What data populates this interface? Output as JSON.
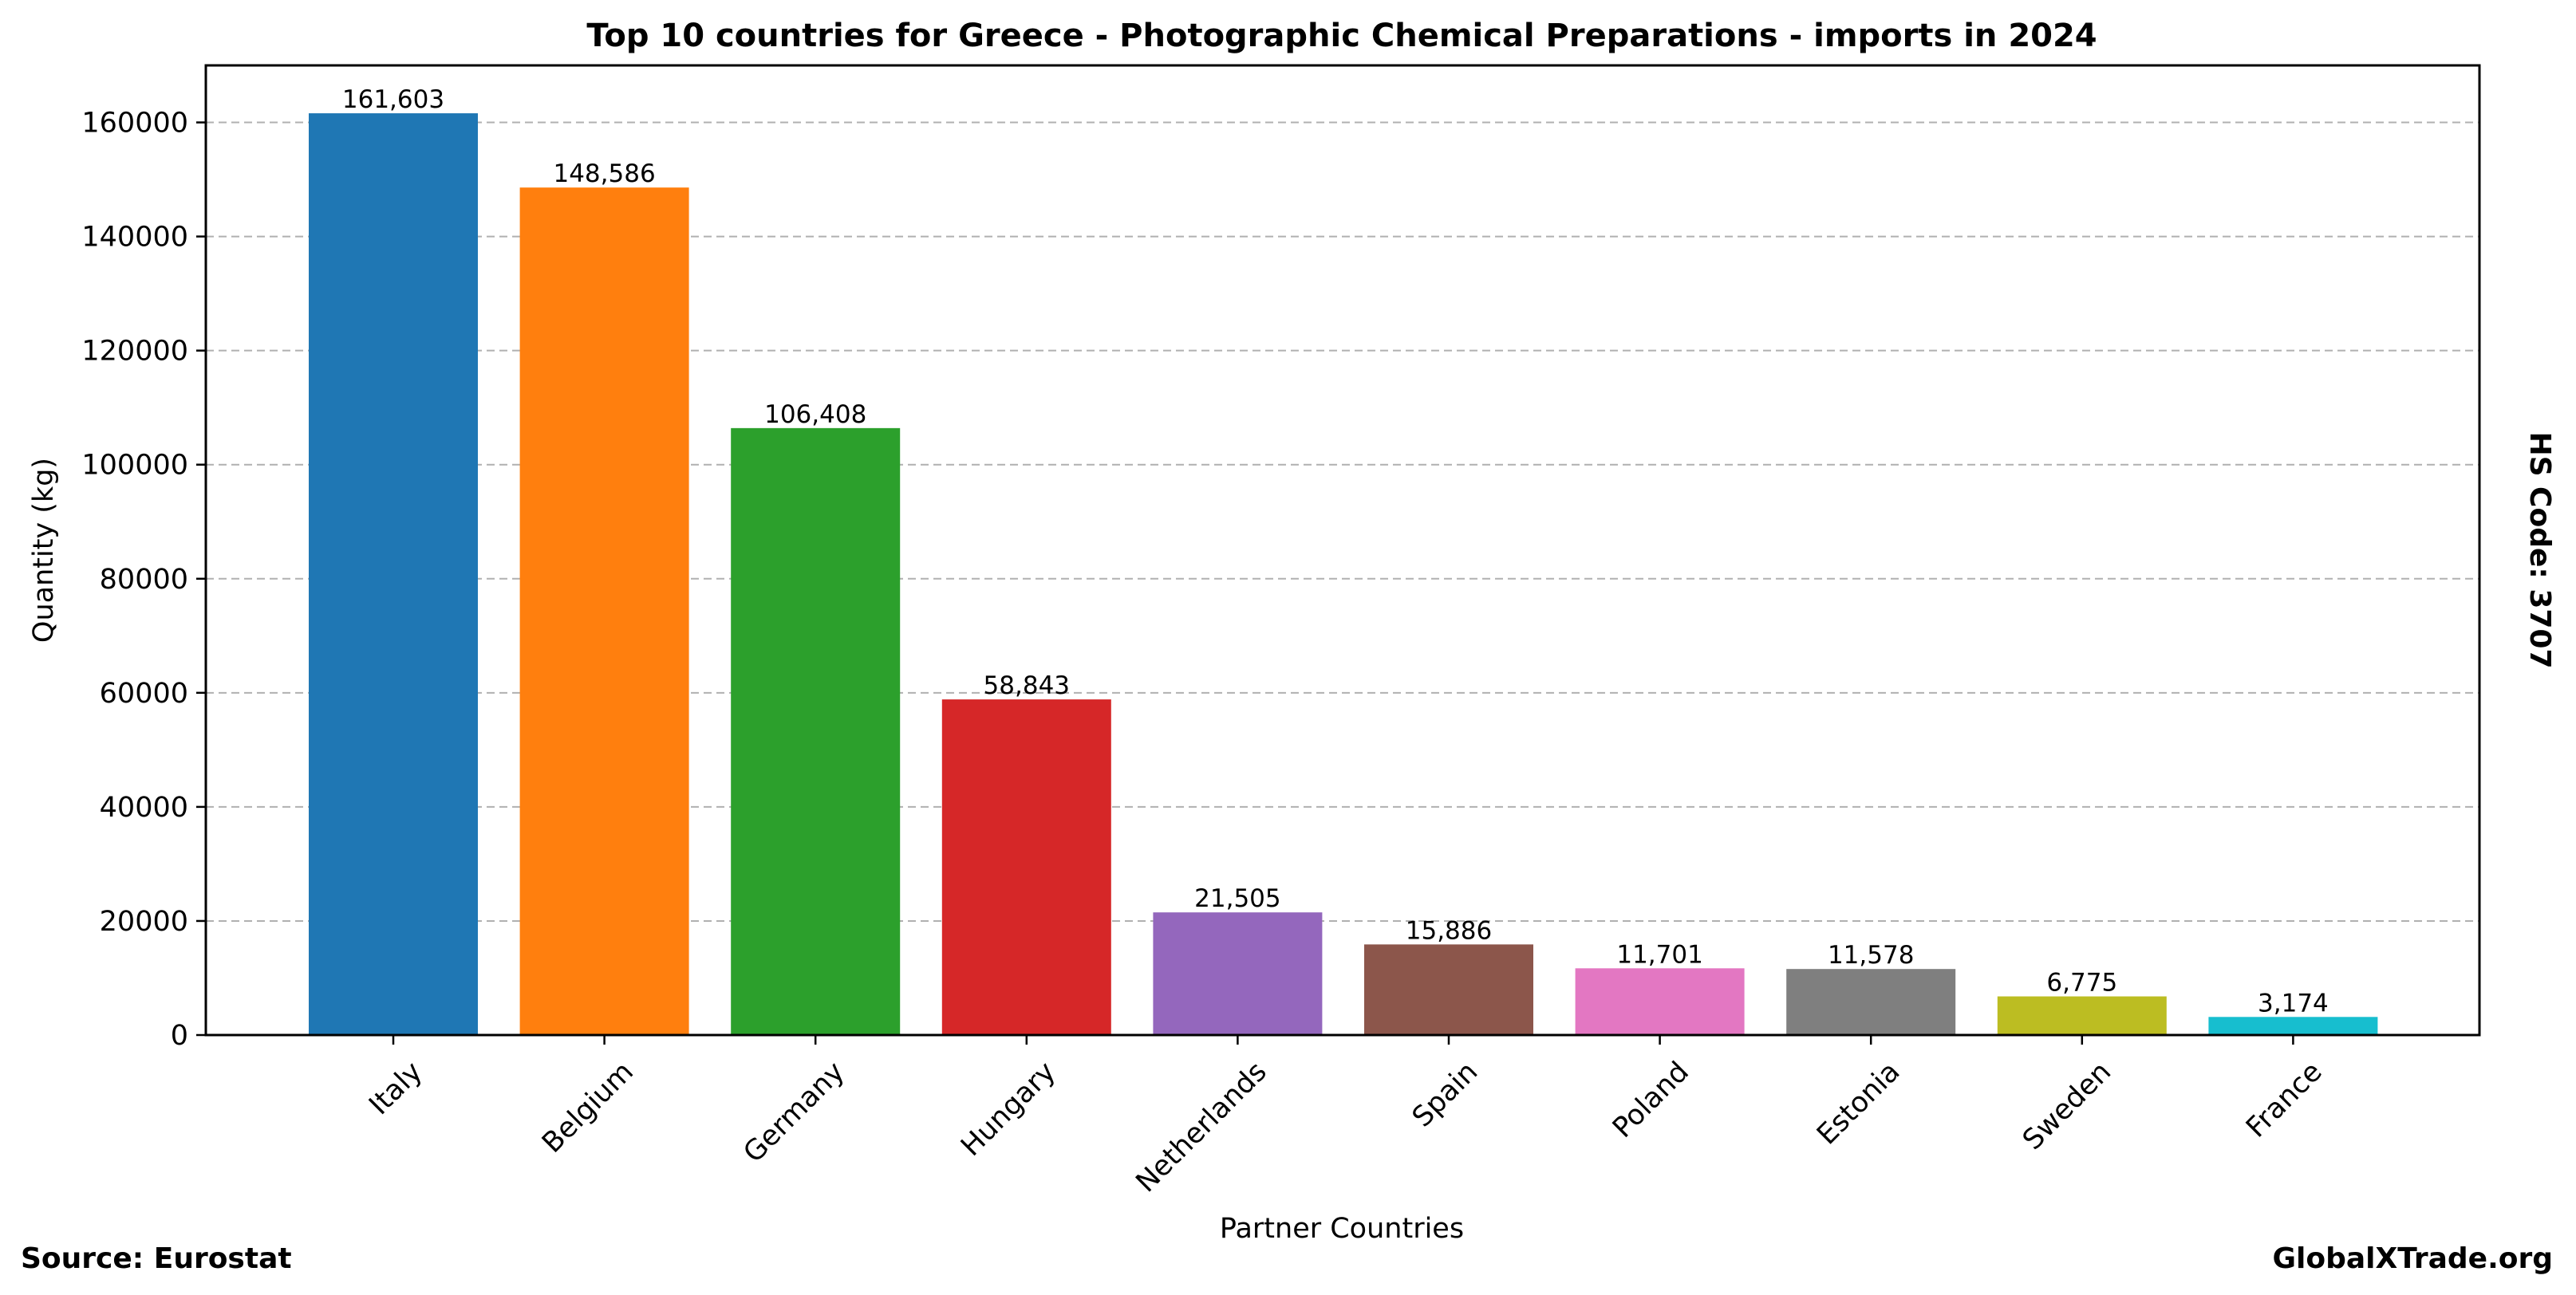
{
  "chart_data": {
    "type": "bar",
    "title": "Top 10 countries for Greece - Photographic Chemical Preparations - imports in 2024",
    "xlabel": "Partner Countries",
    "ylabel": "Quantity (kg)",
    "categories": [
      "Italy",
      "Belgium",
      "Germany",
      "Hungary",
      "Netherlands",
      "Spain",
      "Poland",
      "Estonia",
      "Sweden",
      "France"
    ],
    "values": [
      161603,
      148586,
      106408,
      58843,
      21505,
      15886,
      11701,
      11578,
      6775,
      3174
    ],
    "value_labels": [
      "161,603",
      "148,586",
      "106,408",
      "58,843",
      "21,505",
      "15,886",
      "11,701",
      "11,578",
      "6,775",
      "3,174"
    ],
    "colors": [
      "#1f77b4",
      "#ff7f0e",
      "#2ca02c",
      "#d62728",
      "#9467bd",
      "#8c564b",
      "#e377c2",
      "#7f7f7f",
      "#bcbd22",
      "#17becf"
    ],
    "ylim": [
      0,
      170000
    ],
    "yticks": [
      0,
      20000,
      40000,
      60000,
      80000,
      100000,
      120000,
      140000,
      160000
    ],
    "ytick_labels": [
      "0",
      "20000",
      "40000",
      "60000",
      "80000",
      "100000",
      "120000",
      "140000",
      "160000"
    ],
    "grid": "y-dashed",
    "legend": "none"
  },
  "footer": {
    "source": "Source: Eurostat",
    "brand": "GlobalXTrade.org"
  },
  "side_note": "HS Code: 3707"
}
